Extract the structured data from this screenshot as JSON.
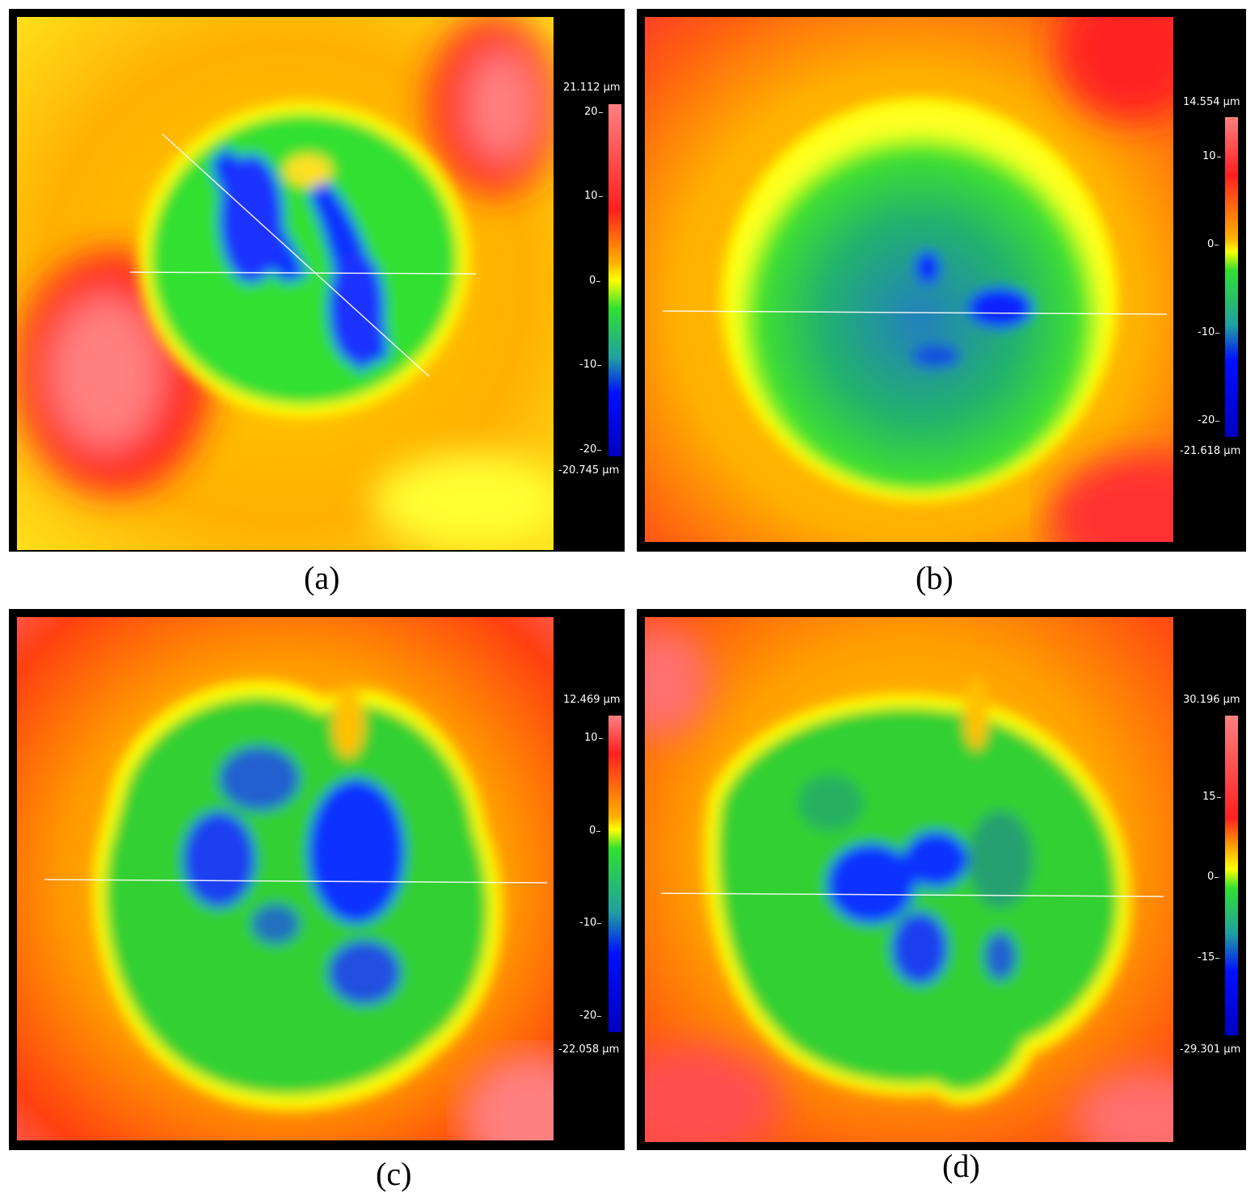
{
  "panels": [
    {
      "id": "a",
      "caption": "(a)",
      "max_label": "21.112 µm",
      "min_label": "-20.745 µm",
      "ticks": [
        "20",
        "10",
        "0",
        "-10",
        "-20"
      ]
    },
    {
      "id": "b",
      "caption": "(b)",
      "max_label": "14.554 µm",
      "min_label": "-21.618 µm",
      "ticks": [
        "10",
        "0",
        "-10",
        "-20"
      ]
    },
    {
      "id": "c",
      "caption": "(c)",
      "max_label": "12.469 µm",
      "min_label": "-22.058 µm",
      "ticks": [
        "10",
        "0",
        "-10",
        "-20"
      ]
    },
    {
      "id": "d",
      "caption": "(d)",
      "max_label": "30.196 µm",
      "min_label": "-29.301 µm",
      "ticks": [
        "15",
        "0",
        "-15"
      ]
    }
  ],
  "colors": {
    "high": "#ff3a3a",
    "mid": "#ffe600",
    "zero": "#2ee02e",
    "low": "#1020ff",
    "background": "#000000"
  }
}
